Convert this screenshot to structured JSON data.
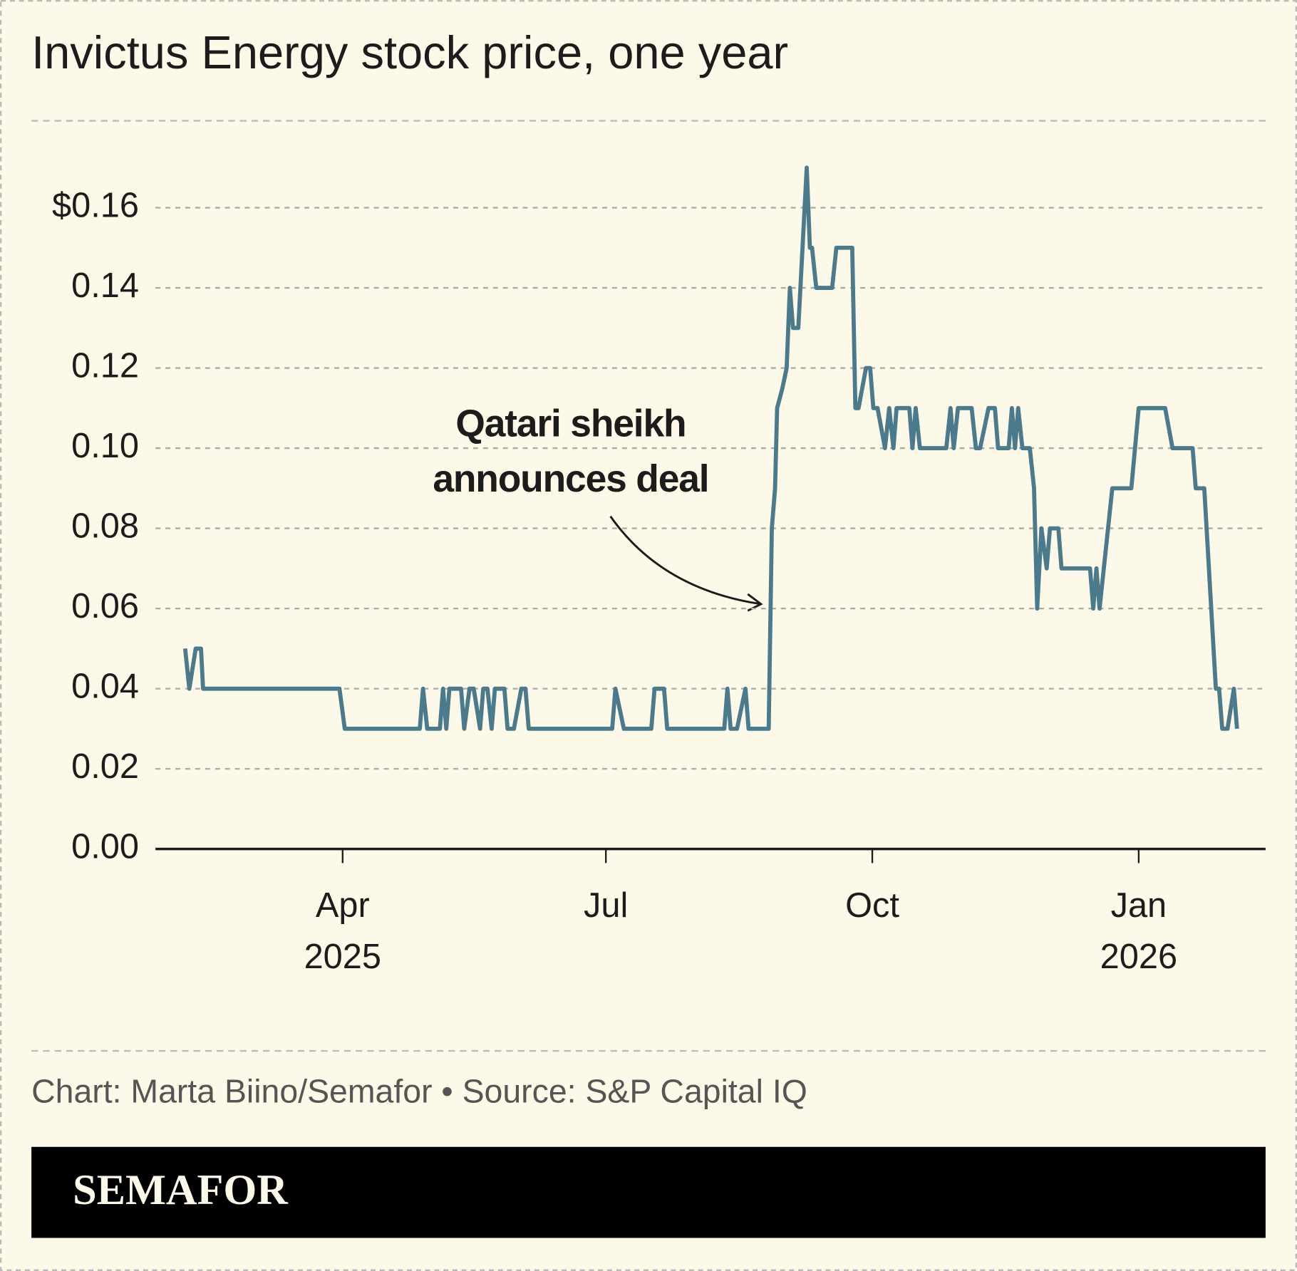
{
  "chart_data": {
    "type": "line",
    "title": "Invictus Energy stock price, one year",
    "annotation": [
      "Qatari sheikh",
      "announces deal"
    ],
    "credit": "Chart: Marta Biino/Semafor • Source: S&P Capital IQ",
    "brand": "SEMAFOR",
    "xlim": [
      2025.07,
      2026.12
    ],
    "xticks": [
      {
        "value": 2025.247,
        "label": "Apr 2025"
      },
      {
        "value": 2025.496,
        "label": "Jul"
      },
      {
        "value": 2025.748,
        "label": "Oct"
      },
      {
        "value": 2026.0,
        "label": "Jan 2026"
      }
    ],
    "ylim": [
      0,
      0.16
    ],
    "yticks": [
      {
        "value": 0,
        "label": "0.00"
      },
      0.02,
      0.04,
      0.06,
      0.08,
      {
        "value": 0.1,
        "label": "0.10"
      },
      0.12,
      0.14,
      {
        "value": 0.16,
        "label": "$0.16"
      }
    ],
    "grid": true,
    "series": [
      {
        "color": "#4a7a8c",
        "x": [
          2025.098,
          2025.102,
          2025.108,
          2025.113,
          2025.115,
          2025.244,
          2025.249,
          2025.32,
          2025.323,
          2025.327,
          2025.339,
          2025.342,
          2025.345,
          2025.348,
          2025.359,
          2025.362,
          2025.367,
          2025.371,
          2025.377,
          2025.38,
          2025.384,
          2025.388,
          2025.391,
          2025.4,
          2025.403,
          2025.409,
          2025.416,
          2025.42,
          2025.423,
          2025.502,
          2025.505,
          2025.513,
          2025.539,
          2025.542,
          2025.551,
          2025.554,
          2025.608,
          2025.611,
          2025.614,
          2025.62,
          2025.628,
          2025.631,
          2025.65,
          2025.653,
          2025.656,
          2025.658,
          2025.663,
          2025.667,
          2025.67,
          2025.673,
          2025.678,
          2025.686,
          2025.689,
          2025.691,
          2025.695,
          2025.71,
          2025.714,
          2025.729,
          2025.732,
          2025.735,
          2025.742,
          2025.746,
          2025.749,
          2025.753,
          2025.76,
          2025.764,
          2025.768,
          2025.771,
          2025.783,
          2025.786,
          2025.789,
          2025.793,
          2025.818,
          2025.822,
          2025.825,
          2025.829,
          2025.842,
          2025.846,
          2025.85,
          2025.858,
          2025.864,
          2025.867,
          2025.877,
          2025.88,
          2025.883,
          2025.886,
          2025.89,
          2025.897,
          2025.901,
          2025.904,
          2025.908,
          2025.913,
          2025.916,
          2025.924,
          2025.927,
          2025.954,
          2025.957,
          2025.96,
          2025.963,
          2025.975,
          2025.993,
          2026.0,
          2026.025,
          2026.032,
          2026.051,
          2026.054,
          2026.062,
          2026.073,
          2026.076,
          2026.079,
          2026.084,
          2026.09,
          2026.093
        ],
        "values": [
          0.05,
          0.04,
          0.05,
          0.05,
          0.04,
          0.04,
          0.03,
          0.03,
          0.04,
          0.03,
          0.03,
          0.04,
          0.03,
          0.04,
          0.04,
          0.03,
          0.04,
          0.04,
          0.03,
          0.04,
          0.04,
          0.03,
          0.04,
          0.04,
          0.03,
          0.03,
          0.04,
          0.04,
          0.03,
          0.03,
          0.04,
          0.03,
          0.03,
          0.04,
          0.04,
          0.03,
          0.03,
          0.04,
          0.03,
          0.03,
          0.04,
          0.03,
          0.03,
          0.08,
          0.09,
          0.11,
          0.115,
          0.12,
          0.14,
          0.13,
          0.13,
          0.17,
          0.15,
          0.15,
          0.14,
          0.14,
          0.15,
          0.15,
          0.11,
          0.11,
          0.12,
          0.12,
          0.11,
          0.11,
          0.1,
          0.11,
          0.1,
          0.11,
          0.11,
          0.1,
          0.11,
          0.1,
          0.1,
          0.11,
          0.1,
          0.11,
          0.11,
          0.1,
          0.1,
          0.11,
          0.11,
          0.1,
          0.1,
          0.11,
          0.1,
          0.11,
          0.1,
          0.1,
          0.09,
          0.06,
          0.08,
          0.07,
          0.08,
          0.08,
          0.07,
          0.07,
          0.06,
          0.07,
          0.06,
          0.09,
          0.09,
          0.11,
          0.11,
          0.1,
          0.1,
          0.09,
          0.09,
          0.04,
          0.04,
          0.03,
          0.03,
          0.04,
          0.03
        ]
      }
    ]
  }
}
